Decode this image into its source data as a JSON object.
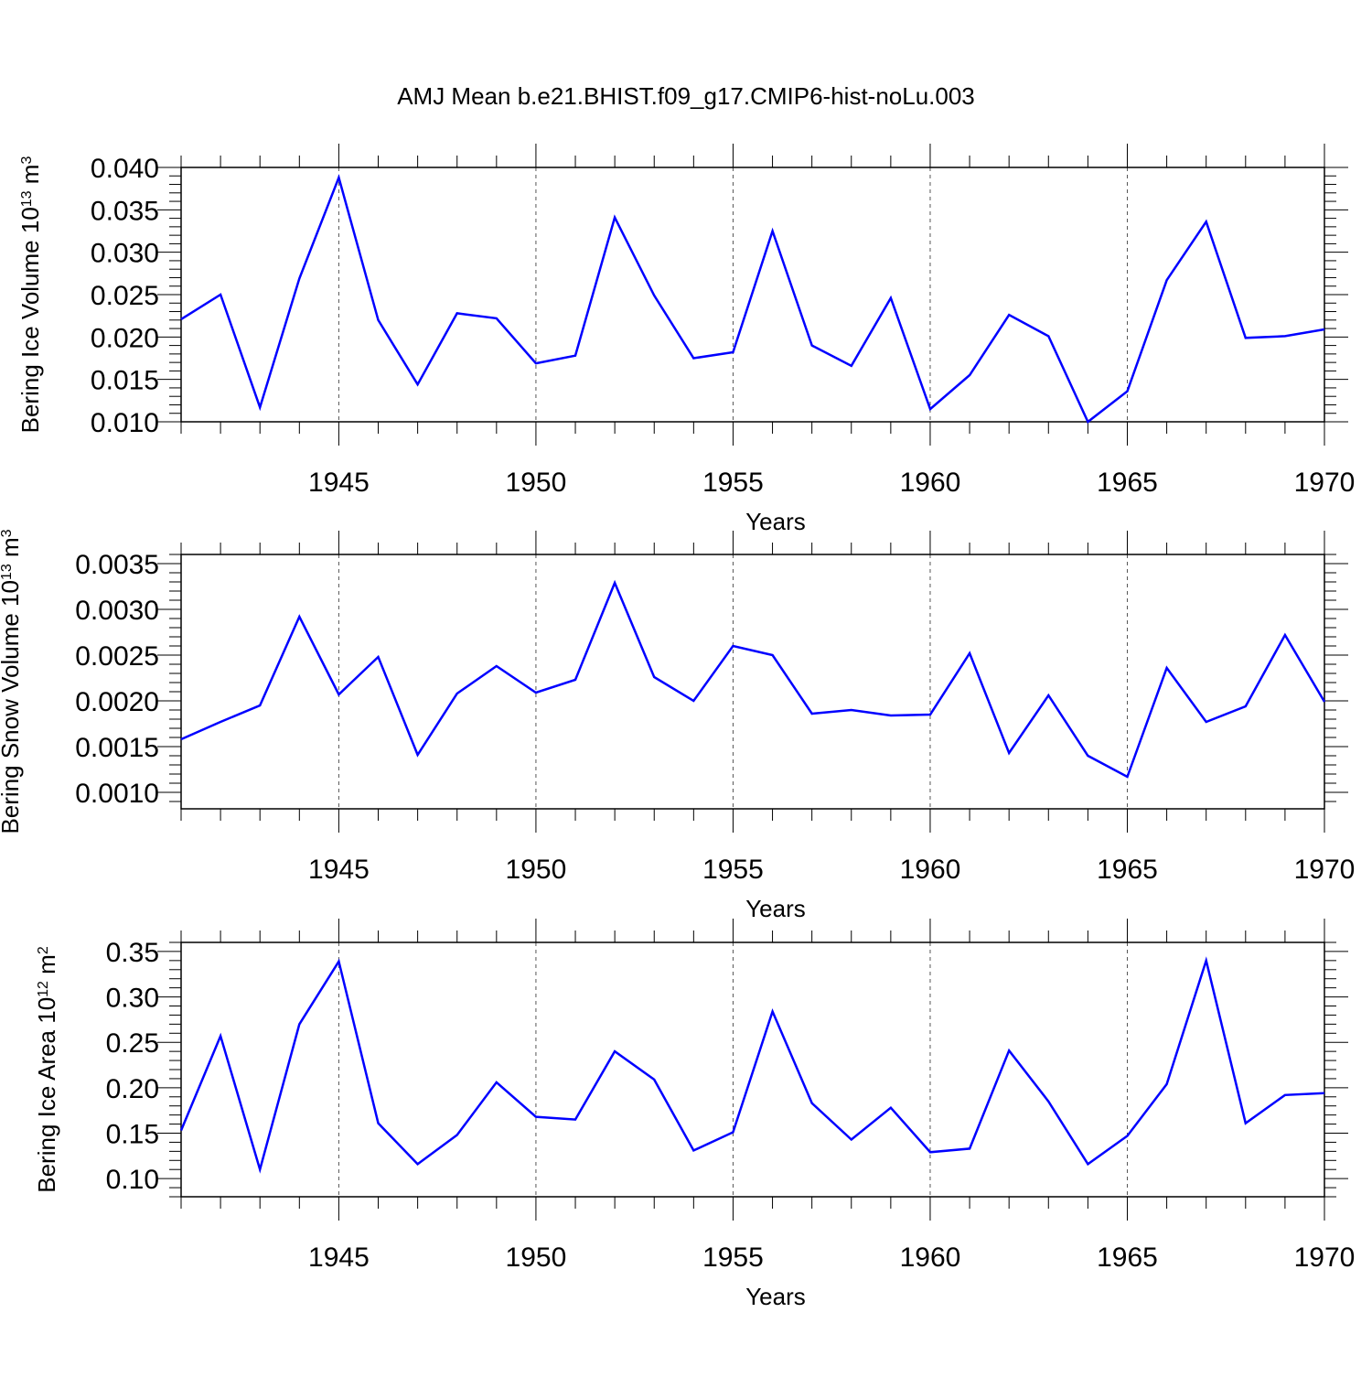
{
  "title": "AMJ Mean b.e21.BHIST.f09_g17.CMIP6-hist-noLu.003",
  "line_color": "#0000ff",
  "chart_data": [
    {
      "type": "line",
      "ylabel": {
        "main": "Bering Ice Volume 10",
        "exp": "13",
        "unit": " m",
        "unit_exp": "3"
      },
      "xlabel": "Years",
      "xlim": [
        1941,
        1970
      ],
      "ylim": [
        0.01,
        0.04
      ],
      "yticks": [
        0.01,
        0.015,
        0.02,
        0.025,
        0.03,
        0.035,
        0.04
      ],
      "ytick_labels": [
        "0.010",
        "0.015",
        "0.020",
        "0.025",
        "0.030",
        "0.035",
        "0.040"
      ],
      "xticks": [
        1945,
        1950,
        1955,
        1960,
        1965,
        1970
      ],
      "xtick_labels": [
        "1945",
        "1950",
        "1955",
        "1960",
        "1965",
        "1970"
      ],
      "grid_x": [
        1945,
        1950,
        1955,
        1960,
        1965
      ],
      "x": [
        1941,
        1942,
        1943,
        1944,
        1945,
        1946,
        1947,
        1948,
        1949,
        1950,
        1951,
        1952,
        1953,
        1954,
        1955,
        1956,
        1957,
        1958,
        1959,
        1960,
        1961,
        1962,
        1963,
        1964,
        1965,
        1966,
        1967,
        1968,
        1969,
        1970
      ],
      "y": [
        0.0221,
        0.025,
        0.0117,
        0.0269,
        0.0388,
        0.022,
        0.0144,
        0.0228,
        0.0222,
        0.0169,
        0.0178,
        0.0341,
        0.0249,
        0.0175,
        0.0182,
        0.0325,
        0.019,
        0.0166,
        0.0246,
        0.0115,
        0.0155,
        0.0226,
        0.0201,
        0.01,
        0.0136,
        0.0267,
        0.0336,
        0.0199,
        0.0201,
        0.0209
      ]
    },
    {
      "type": "line",
      "ylabel": {
        "main": "Bering Snow Volume 10",
        "exp": "13",
        "unit": " m",
        "unit_exp": "3"
      },
      "xlabel": "Years",
      "xlim": [
        1941,
        1970
      ],
      "ylim": [
        0.00082,
        0.0036
      ],
      "yticks": [
        0.001,
        0.0015,
        0.002,
        0.0025,
        0.003,
        0.0035
      ],
      "ytick_labels": [
        "0.0010",
        "0.0015",
        "0.0020",
        "0.0025",
        "0.0030",
        "0.0035"
      ],
      "xticks": [
        1945,
        1950,
        1955,
        1960,
        1965,
        1970
      ],
      "xtick_labels": [
        "1945",
        "1950",
        "1955",
        "1960",
        "1965",
        "1970"
      ],
      "grid_x": [
        1945,
        1950,
        1955,
        1960,
        1965
      ],
      "x": [
        1941,
        1942,
        1943,
        1944,
        1945,
        1946,
        1947,
        1948,
        1949,
        1950,
        1951,
        1952,
        1953,
        1954,
        1955,
        1956,
        1957,
        1958,
        1959,
        1960,
        1961,
        1962,
        1963,
        1964,
        1965,
        1966,
        1967,
        1968,
        1969,
        1970
      ],
      "y": [
        0.00158,
        0.00177,
        0.00195,
        0.00292,
        0.00207,
        0.00248,
        0.00141,
        0.00208,
        0.00238,
        0.00209,
        0.00223,
        0.00329,
        0.00226,
        0.002,
        0.0026,
        0.0025,
        0.00186,
        0.0019,
        0.00184,
        0.00185,
        0.00252,
        0.00143,
        0.00206,
        0.0014,
        0.00117,
        0.00236,
        0.00177,
        0.00194,
        0.00272,
        0.00199
      ]
    },
    {
      "type": "line",
      "ylabel": {
        "main": "Bering Ice Area 10",
        "exp": "12",
        "unit": " m",
        "unit_exp": "2"
      },
      "xlabel": "Years",
      "xlim": [
        1941,
        1970
      ],
      "ylim": [
        0.08,
        0.36
      ],
      "yticks": [
        0.1,
        0.15,
        0.2,
        0.25,
        0.3,
        0.35
      ],
      "ytick_labels": [
        "0.10",
        "0.15",
        "0.20",
        "0.25",
        "0.30",
        "0.35"
      ],
      "xticks": [
        1945,
        1950,
        1955,
        1960,
        1965,
        1970
      ],
      "xtick_labels": [
        "1945",
        "1950",
        "1955",
        "1960",
        "1965",
        "1970"
      ],
      "grid_x": [
        1945,
        1950,
        1955,
        1960,
        1965
      ],
      "x": [
        1941,
        1942,
        1943,
        1944,
        1945,
        1946,
        1947,
        1948,
        1949,
        1950,
        1951,
        1952,
        1953,
        1954,
        1955,
        1956,
        1957,
        1958,
        1959,
        1960,
        1961,
        1962,
        1963,
        1964,
        1965,
        1966,
        1967,
        1968,
        1969,
        1970
      ],
      "y": [
        0.153,
        0.257,
        0.11,
        0.27,
        0.339,
        0.161,
        0.116,
        0.148,
        0.206,
        0.168,
        0.165,
        0.24,
        0.209,
        0.131,
        0.151,
        0.284,
        0.183,
        0.143,
        0.178,
        0.129,
        0.133,
        0.241,
        0.185,
        0.116,
        0.147,
        0.204,
        0.34,
        0.161,
        0.192,
        0.194
      ]
    }
  ]
}
